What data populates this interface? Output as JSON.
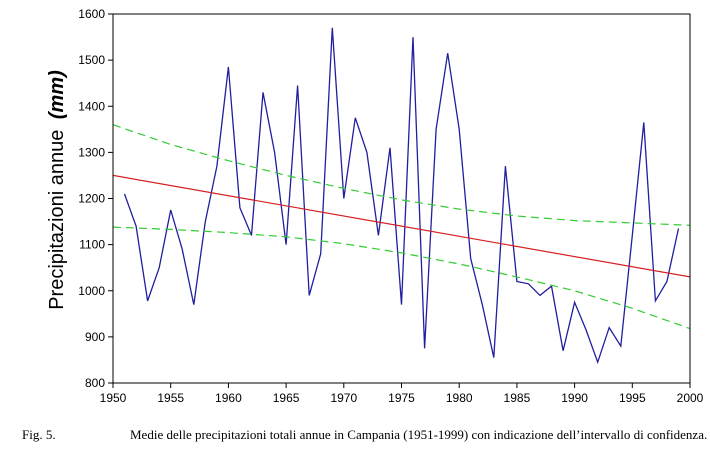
{
  "chart_data": {
    "type": "line",
    "title": "",
    "xlabel": "",
    "ylabel": "Precipitazioni annue",
    "ylabel_unit": "(mm)",
    "xlim": [
      1950,
      2000
    ],
    "ylim": [
      800,
      1600
    ],
    "xticks": [
      1950,
      1955,
      1960,
      1965,
      1970,
      1975,
      1980,
      1985,
      1990,
      1995,
      2000
    ],
    "yticks": [
      800,
      900,
      1000,
      1100,
      1200,
      1300,
      1400,
      1500,
      1600
    ],
    "grid": false,
    "series": [
      {
        "type": "line",
        "color": "#1f1f9f",
        "x": [
          1951,
          1952,
          1953,
          1954,
          1955,
          1956,
          1957,
          1958,
          1959,
          1960,
          1961,
          1962,
          1963,
          1964,
          1965,
          1966,
          1967,
          1968,
          1969,
          1970,
          1971,
          1972,
          1973,
          1974,
          1975,
          1976,
          1977,
          1978,
          1979,
          1980,
          1981,
          1982,
          1983,
          1984,
          1985,
          1986,
          1987,
          1988,
          1989,
          1990,
          1991,
          1992,
          1993,
          1994,
          1995,
          1996,
          1997,
          1998,
          1999
        ],
        "y": [
          1210,
          1140,
          978,
          1050,
          1175,
          1090,
          970,
          1150,
          1270,
          1485,
          1180,
          1120,
          1430,
          1300,
          1100,
          1445,
          990,
          1080,
          1570,
          1200,
          1375,
          1300,
          1120,
          1310,
          970,
          1550,
          875,
          1350,
          1515,
          1350,
          1070,
          970,
          855,
          1270,
          1020,
          1015,
          990,
          1010,
          870,
          975,
          915,
          845,
          920,
          880,
          1120,
          1365,
          978,
          1020,
          1135
        ]
      },
      {
        "type": "trend",
        "color": "#d42020",
        "x": [
          1950,
          2000
        ],
        "y": [
          1250,
          1030
        ]
      },
      {
        "type": "confidence",
        "style": "dashed",
        "color": "#33cc33",
        "x": [
          1950,
          1955,
          1960,
          1965,
          1970,
          1975,
          1980,
          1985,
          1990,
          1995,
          2000
        ],
        "y": [
          1360,
          1317,
          1282,
          1250,
          1222,
          1197,
          1177,
          1162,
          1152,
          1147,
          1142
        ]
      },
      {
        "type": "confidence",
        "style": "dashed",
        "color": "#33cc33",
        "x": [
          1950,
          1955,
          1960,
          1965,
          1970,
          1975,
          1980,
          1985,
          1990,
          1995,
          2000
        ],
        "y": [
          1138,
          1133,
          1126,
          1117,
          1102,
          1082,
          1058,
          1030,
          1000,
          962,
          918
        ]
      }
    ]
  },
  "caption": {
    "label": "Fig. 5.",
    "text": "Medie delle precipitazioni totali annue in Campania (1951-1999) con indicazione dell’intervallo di confidenza."
  }
}
